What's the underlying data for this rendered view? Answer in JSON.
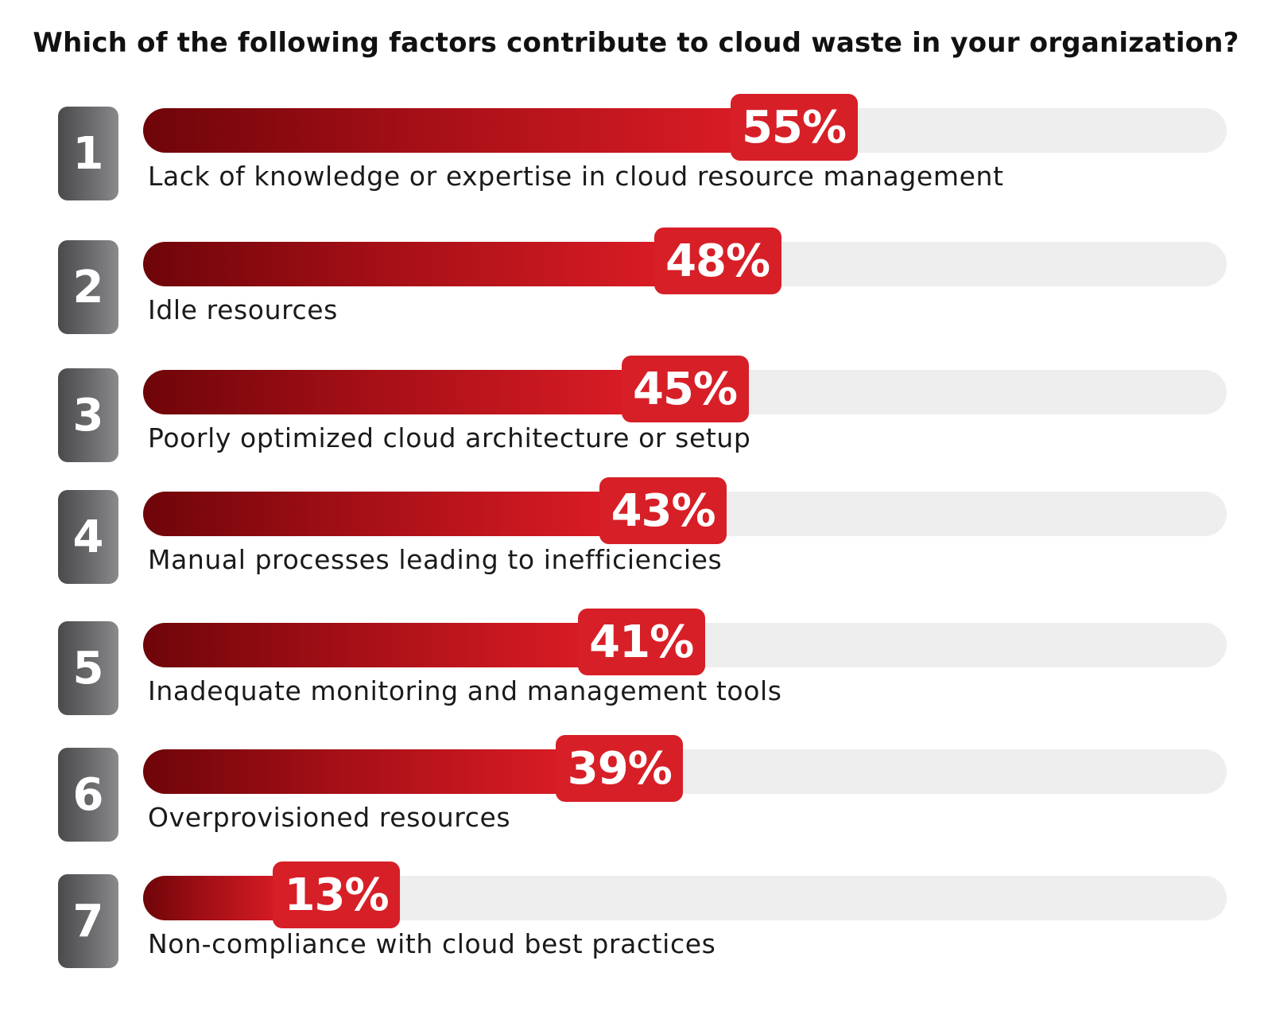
{
  "chart_data": {
    "type": "bar",
    "orientation": "horizontal",
    "title": "Which of the following factors contribute to cloud waste in your organization?",
    "ranks": [
      "1",
      "2",
      "3",
      "4",
      "5",
      "6",
      "7"
    ],
    "categories": [
      "Lack of knowledge or expertise in cloud resource management",
      "Idle resources",
      "Poorly optimized cloud architecture or setup",
      "Manual processes leading to inefficiencies",
      "Inadequate monitoring and management tools",
      "Overprovisioned resources",
      "Non-compliance with cloud best practices"
    ],
    "values": [
      55,
      48,
      45,
      43,
      41,
      39,
      13
    ],
    "value_labels": [
      "55%",
      "48%",
      "45%",
      "43%",
      "41%",
      "39%",
      "13%"
    ],
    "unit": "%",
    "xlim": [
      0,
      100
    ],
    "grid": false,
    "legend": "none",
    "colors": {
      "bar_start": "#6e0509",
      "bar_end": "#da1c25",
      "value_badge": "#d71f27",
      "track": "#eeeeee",
      "rank_badge": "#5c5c5e"
    }
  }
}
